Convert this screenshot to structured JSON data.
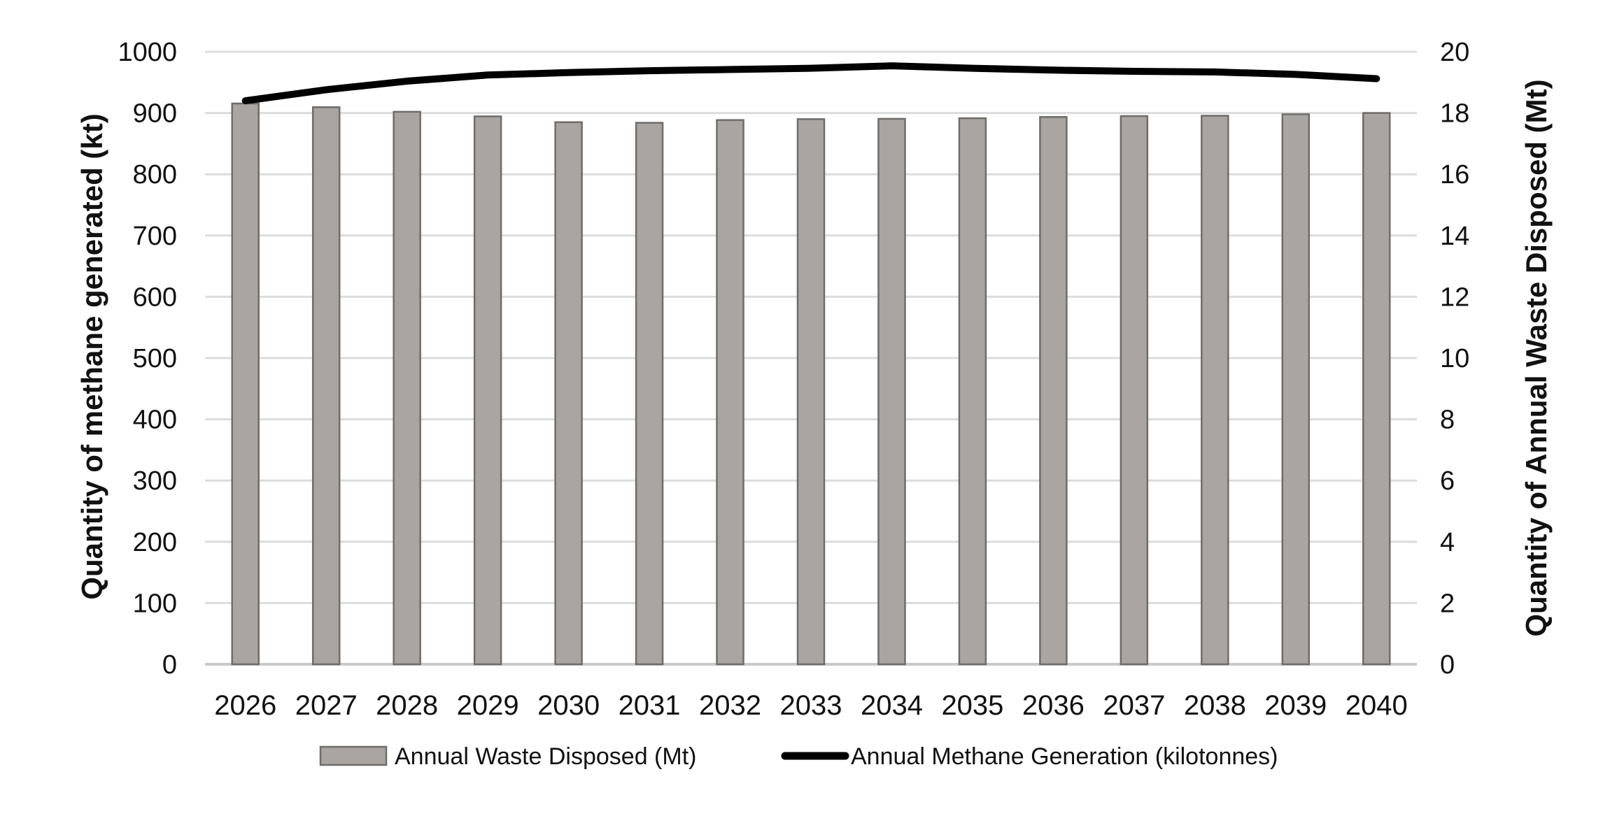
{
  "chart_data": {
    "type": "combo",
    "title": "",
    "categories": [
      "2026",
      "2027",
      "2028",
      "2029",
      "2030",
      "2031",
      "2032",
      "2033",
      "2034",
      "2035",
      "2036",
      "2037",
      "2038",
      "2039",
      "2040"
    ],
    "series": [
      {
        "name": "Annual Waste Disposed (Mt)",
        "type": "bar",
        "axis": "right",
        "values": [
          18.31,
          18.19,
          18.04,
          17.89,
          17.7,
          17.68,
          17.77,
          17.8,
          17.81,
          17.83,
          17.87,
          17.9,
          17.91,
          17.96,
          18.0
        ]
      },
      {
        "name": "Annual Methane Generation (kilotonnes)",
        "type": "line",
        "axis": "left",
        "values": [
          920,
          938,
          952,
          962,
          966,
          969,
          971,
          973,
          977,
          973,
          970,
          968,
          967,
          963,
          956
        ]
      }
    ],
    "left_axis": {
      "label": "Quantity of methane generated (kt)",
      "min": 0,
      "max": 1000,
      "step": 100,
      "tick_labels": [
        "0",
        "100",
        "200",
        "300",
        "400",
        "500",
        "600",
        "700",
        "800",
        "900",
        "1000"
      ]
    },
    "right_axis": {
      "label": "Quantity of Annual Waste Disposed (Mt)",
      "min": 0,
      "max": 20,
      "step": 2,
      "tick_labels": [
        "0",
        "2",
        "4",
        "6",
        "8",
        "10",
        "12",
        "14",
        "16",
        "18",
        "20"
      ]
    },
    "legend": {
      "position": "bottom",
      "entries": [
        "Annual Waste Disposed (Mt)",
        "Annual Methane Generation (kilotonnes)"
      ]
    },
    "grid": true,
    "colors": {
      "bar_fill": "#a8a5a2",
      "bar_border": "#6f6c69",
      "line": "#000000",
      "gridline": "#dcdcdc",
      "axis_line": "#c9c9c9",
      "text": "#111111"
    }
  }
}
